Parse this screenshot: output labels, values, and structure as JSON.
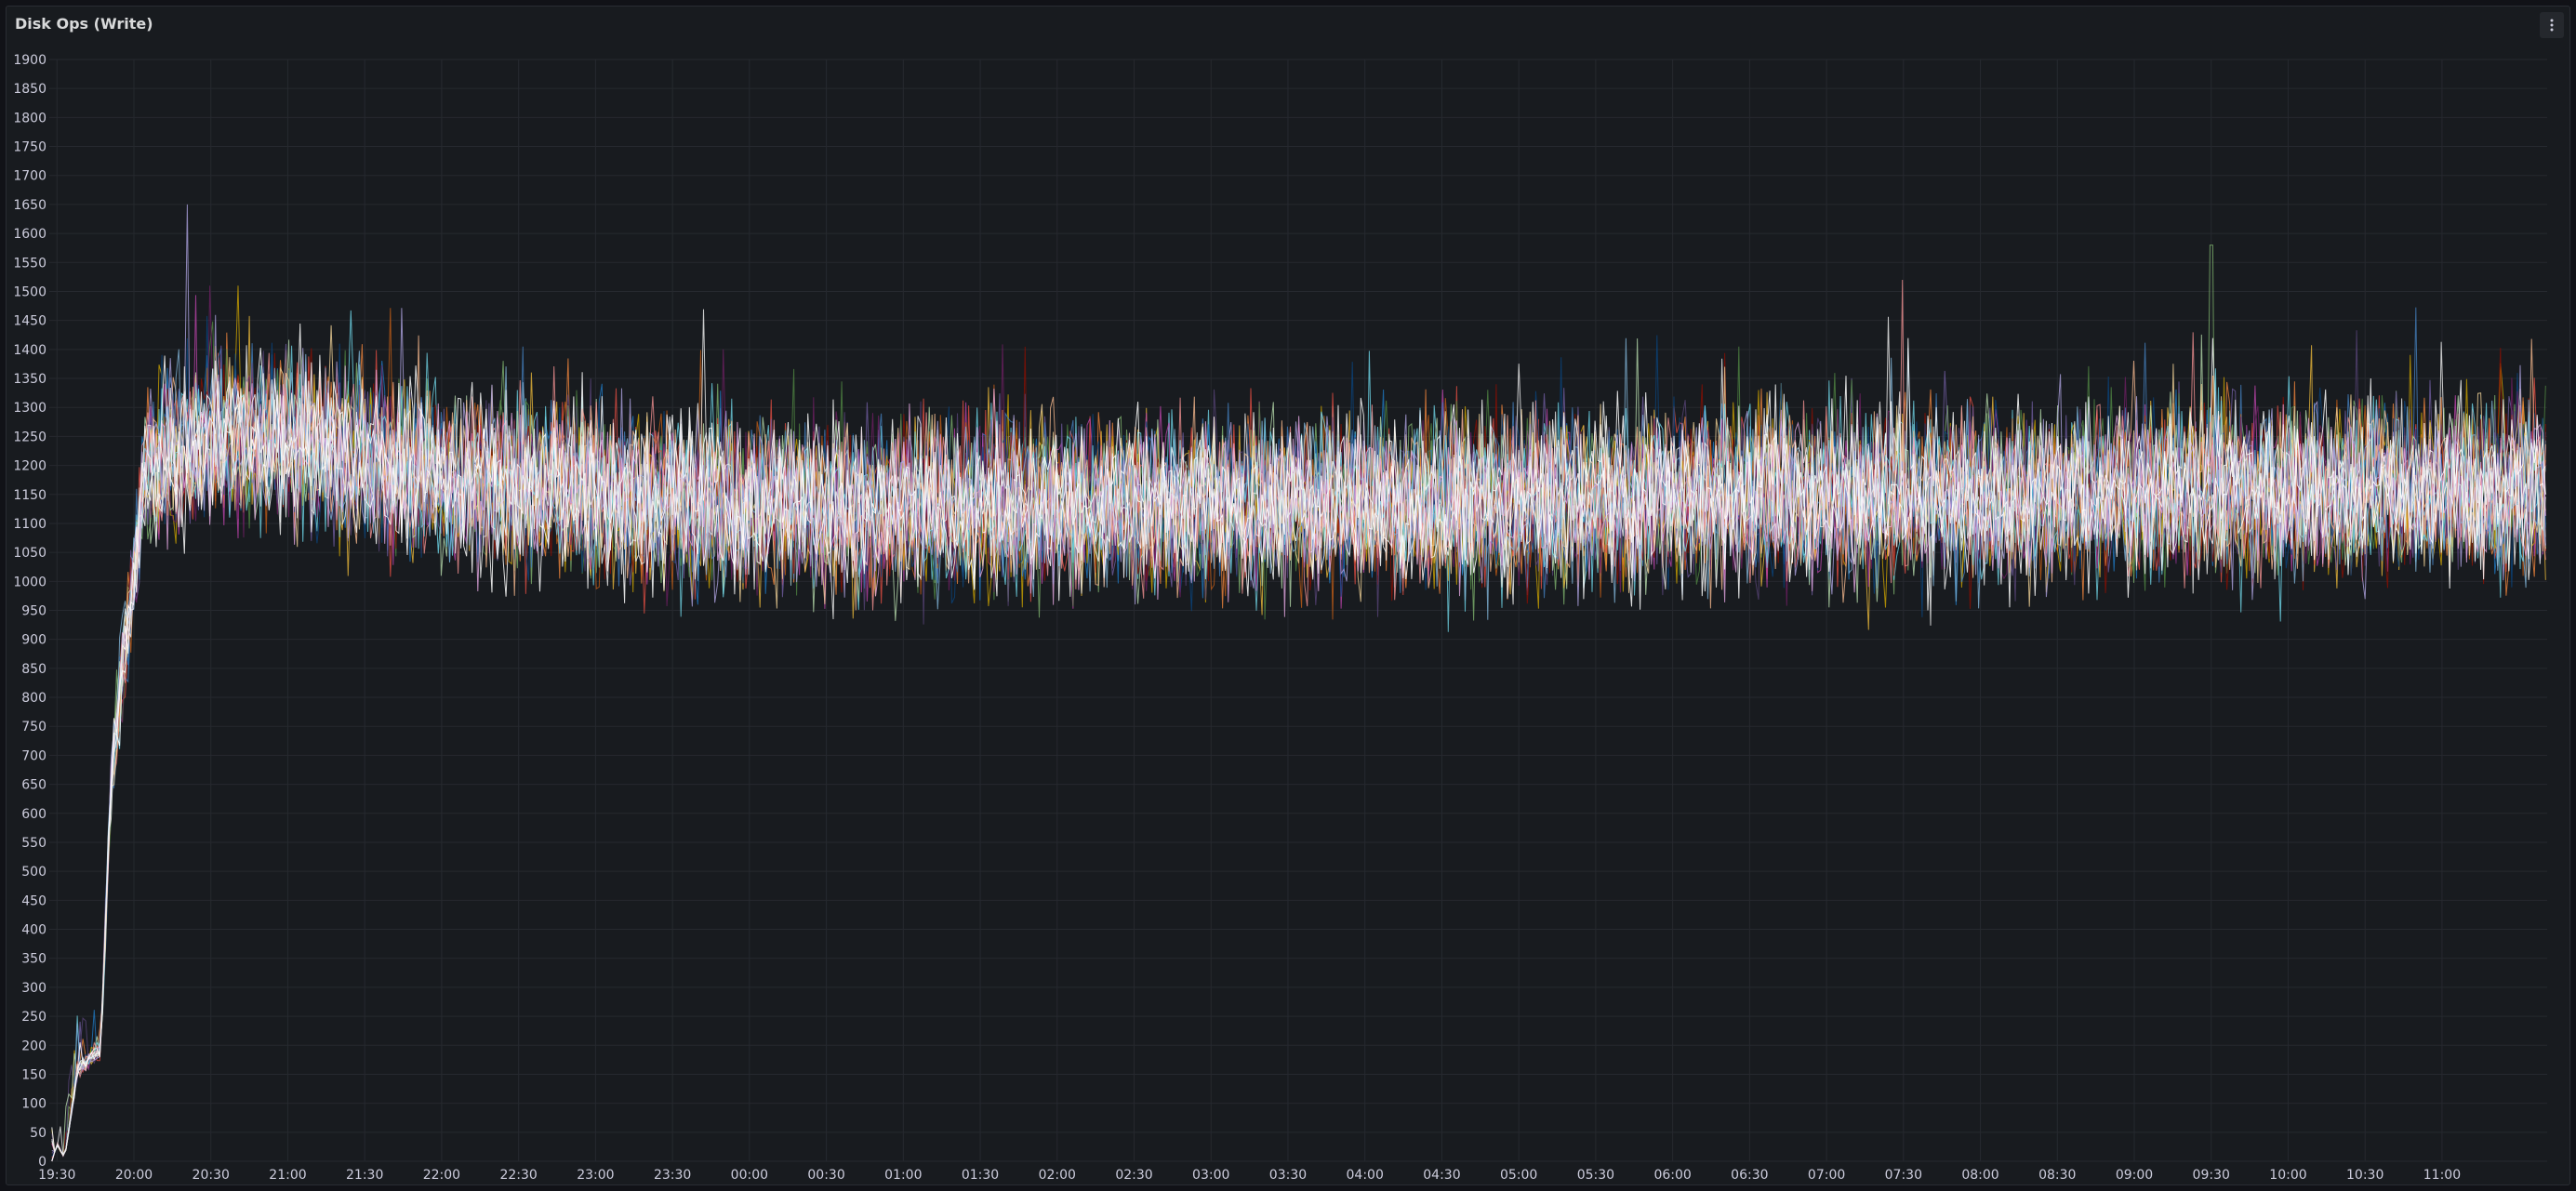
{
  "panel": {
    "title": "Disk Ops (Write)",
    "menu_icon": "kebab-menu-icon"
  },
  "colors": {
    "background": "#181b1f",
    "grid": "#26292f",
    "axis_text": "#ccccdc",
    "series_palette": [
      "#7eb26d",
      "#eab839",
      "#6ed0e0",
      "#ef843c",
      "#e24d42",
      "#1f78c1",
      "#ba43a9",
      "#705da0",
      "#508642",
      "#cca300",
      "#447ebc",
      "#c15c17",
      "#890f02",
      "#0a437c",
      "#6d1f62",
      "#584477",
      "#b7dbab",
      "#f4d598",
      "#70dbed",
      "#f9ba8f",
      "#f29191",
      "#82b5d8",
      "#e5a8e2",
      "#aea2e0",
      "#ffffff",
      "#ffffff",
      "#ffffff",
      "#e8e8e8"
    ]
  },
  "chart_data": {
    "type": "line",
    "title": "Disk Ops (Write)",
    "xlabel": "",
    "ylabel": "",
    "ylim": [
      0,
      1900
    ],
    "y_ticks": [
      "0",
      "50",
      "100",
      "150",
      "200",
      "250",
      "300",
      "350",
      "400",
      "450",
      "500",
      "550",
      "600",
      "650",
      "700",
      "750",
      "800",
      "850",
      "900",
      "950",
      "1000",
      "1050",
      "1100",
      "1150",
      "1200",
      "1250",
      "1300",
      "1350",
      "1400",
      "1450",
      "1500",
      "1550",
      "1600",
      "1650",
      "1700",
      "1750",
      "1800",
      "1850",
      "1900"
    ],
    "x_ticks": [
      "19:30",
      "20:00",
      "20:30",
      "21:00",
      "21:30",
      "22:00",
      "22:30",
      "23:00",
      "23:30",
      "00:00",
      "00:30",
      "01:00",
      "01:30",
      "02:00",
      "02:30",
      "03:00",
      "03:30",
      "04:00",
      "04:30",
      "05:00",
      "05:30",
      "06:00",
      "06:30",
      "07:00",
      "07:30",
      "08:00",
      "08:30",
      "09:00",
      "09:30",
      "10:00",
      "10:30",
      "11:00"
    ],
    "x_range_minutes_since_first_tick": [
      -3,
      971
    ],
    "grid": true,
    "legend": "none",
    "series_count": 28,
    "profile": [
      {
        "t": "19:28",
        "y": 0
      },
      {
        "t": "19:30",
        "y": 30
      },
      {
        "t": "19:33",
        "y": 5
      },
      {
        "t": "19:38",
        "y": 160
      },
      {
        "t": "19:47",
        "y": 190
      },
      {
        "t": "19:51",
        "y": 640
      },
      {
        "t": "19:55",
        "y": 830
      },
      {
        "t": "20:05",
        "y": 1200
      },
      {
        "t": "20:30",
        "y": 1250
      },
      {
        "t": "21:00",
        "y": 1240
      },
      {
        "t": "21:30",
        "y": 1210
      },
      {
        "t": "22:00",
        "y": 1180
      },
      {
        "t": "23:00",
        "y": 1150
      },
      {
        "t": "00:00",
        "y": 1130
      },
      {
        "t": "02:00",
        "y": 1130
      },
      {
        "t": "05:00",
        "y": 1140
      },
      {
        "t": "08:00",
        "y": 1150
      },
      {
        "t": "11:00",
        "y": 1160
      },
      {
        "t": "11:14",
        "y": 1160
      }
    ],
    "typical_range_after_20:05": [
      900,
      1450
    ],
    "peaks": [
      {
        "t": "20:21",
        "y": 1650
      },
      {
        "t": "07:30",
        "y": 1520
      },
      {
        "t": "09:30",
        "y": 1580
      }
    ]
  }
}
